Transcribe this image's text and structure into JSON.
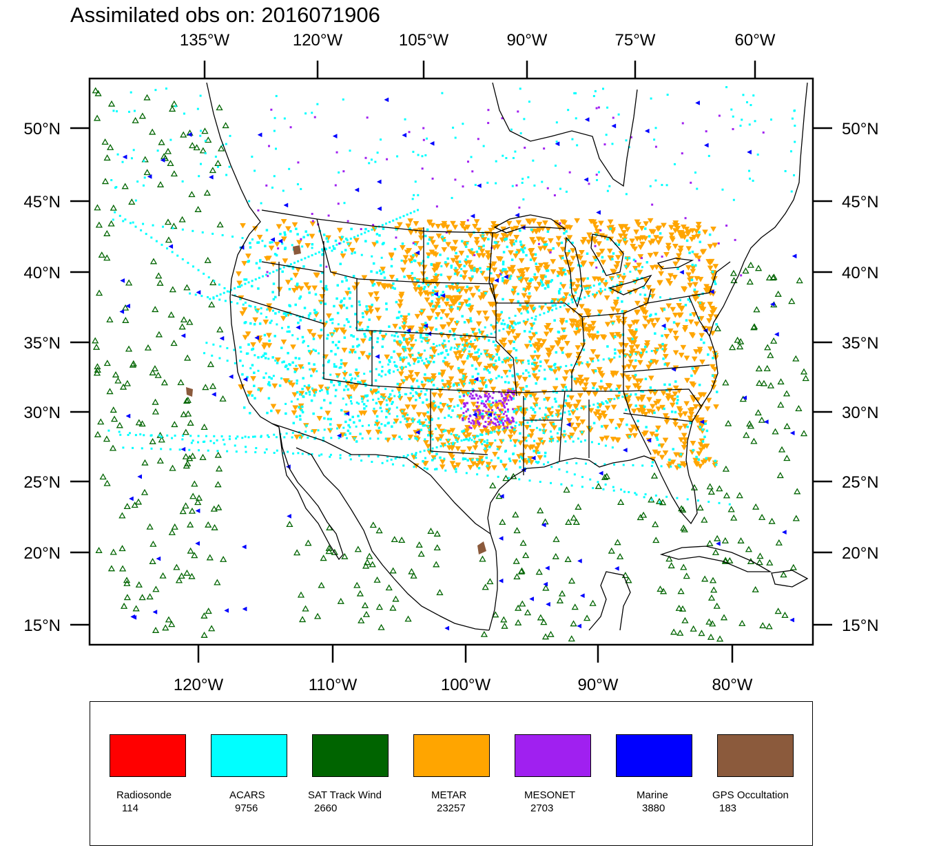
{
  "title": "Assimilated obs on: 2016071906",
  "axes": {
    "top_lon_ticks": [
      "135°W",
      "120°W",
      "105°W",
      "90°W",
      "75°W",
      "60°W"
    ],
    "bottom_lon_ticks": [
      "120°W",
      "110°W",
      "100°W",
      "90°W",
      "80°W"
    ],
    "lat_ticks": [
      "50°N",
      "45°N",
      "40°N",
      "35°N",
      "30°N",
      "25°N",
      "20°N",
      "15°N"
    ]
  },
  "legend": {
    "items": [
      {
        "name": "Radiosonde",
        "count": "114",
        "color": "#ff0000"
      },
      {
        "name": "ACARS",
        "count": "9756",
        "color": "#00ffff"
      },
      {
        "name": "SAT Track Wind",
        "count": "2660",
        "color": "#006400"
      },
      {
        "name": "METAR",
        "count": "23257",
        "color": "#ffa500"
      },
      {
        "name": "MESONET",
        "count": "2703",
        "color": "#a020f0"
      },
      {
        "name": "Marine",
        "count": "3880",
        "color": "#0000ff"
      },
      {
        "name": "GPS Occultation",
        "count": "183",
        "color": "#8b5a3c"
      }
    ]
  },
  "map": {
    "region": "Continental United States, southern Canada, Mexico, Gulf of Mexico and Caribbean",
    "background": "#ffffff",
    "boundary_color": "#000000",
    "markers": {
      "sat_track_wind": "open-triangle-up",
      "metar": "filled-triangle-down",
      "acars": "small-square",
      "mesonet": "diamond",
      "marine": "triangle-left",
      "gps_occultation": "blob"
    }
  }
}
